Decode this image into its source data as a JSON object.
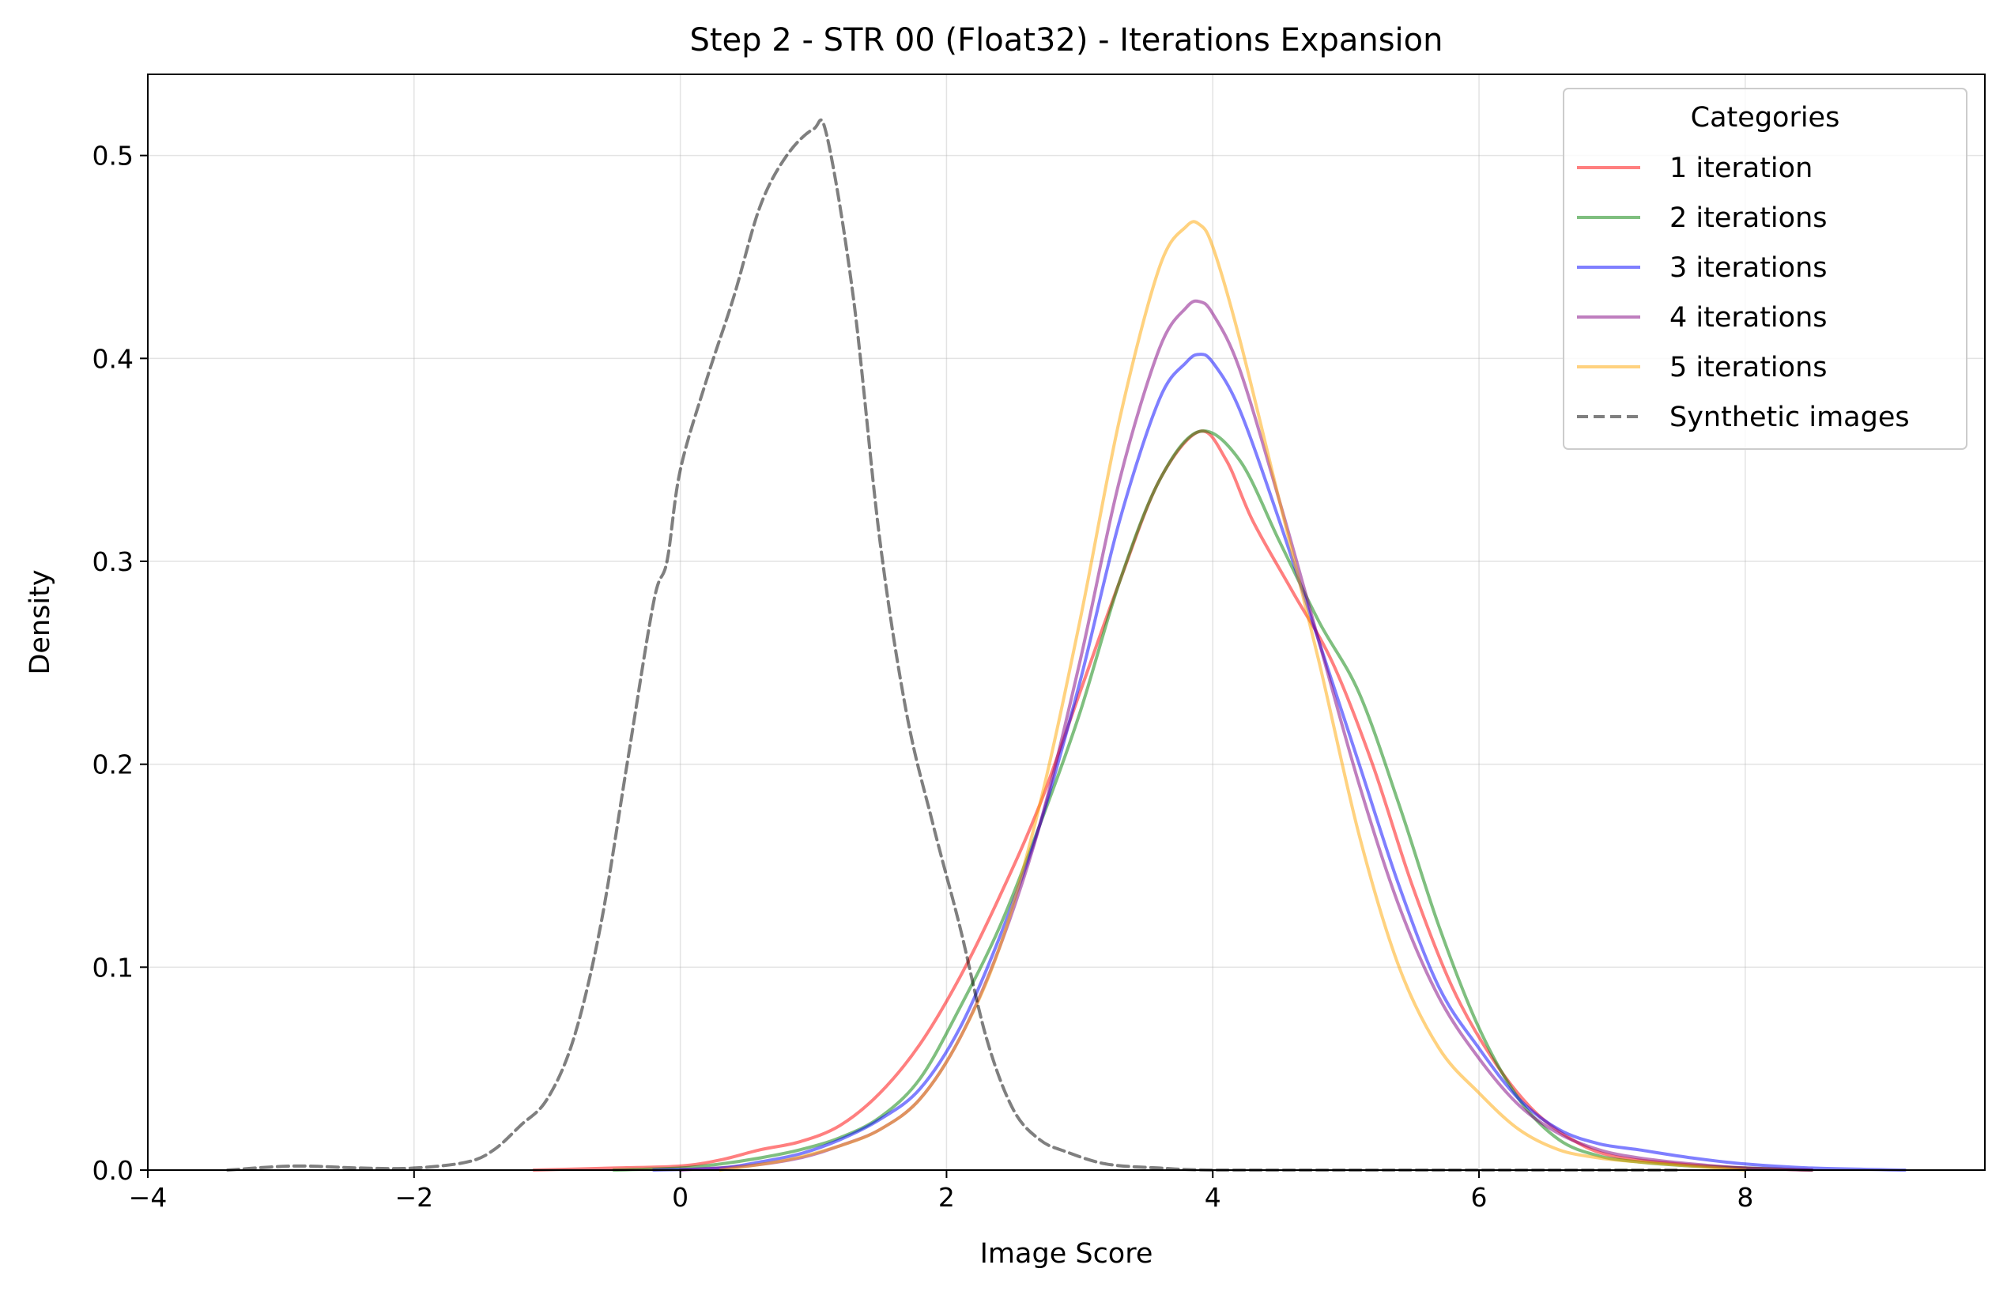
{
  "chart_data": {
    "type": "line",
    "title": "Step 2 - STR 00 (Float32) - Iterations Expansion",
    "xlabel": "Image Score",
    "ylabel": "Density",
    "xlim": [
      -4,
      9.8
    ],
    "ylim": [
      0,
      0.54
    ],
    "xticks": [
      -4,
      -2,
      0,
      2,
      4,
      6,
      8
    ],
    "xtick_labels": [
      "−4",
      "−2",
      "0",
      "2",
      "4",
      "6",
      "8"
    ],
    "yticks": [
      0.0,
      0.1,
      0.2,
      0.3,
      0.4,
      0.5
    ],
    "ytick_labels": [
      "0.0",
      "0.1",
      "0.2",
      "0.3",
      "0.4",
      "0.5"
    ],
    "grid": true,
    "legend": {
      "title": "Categories",
      "placement": "top-right"
    },
    "series": [
      {
        "name": "1 iteration",
        "color": "#ff0000",
        "opacity": 0.5,
        "dash": "solid",
        "x": [
          -1.1,
          -0.5,
          0.0,
          0.3,
          0.6,
          0.9,
          1.2,
          1.5,
          1.8,
          2.1,
          2.4,
          2.7,
          3.0,
          3.3,
          3.6,
          3.9,
          4.1,
          4.3,
          4.6,
          4.9,
          5.2,
          5.5,
          5.8,
          6.1,
          6.4,
          6.7,
          7.0,
          7.5,
          8.0,
          8.5
        ],
        "y": [
          0.0,
          0.001,
          0.002,
          0.005,
          0.01,
          0.014,
          0.022,
          0.038,
          0.062,
          0.095,
          0.135,
          0.18,
          0.235,
          0.29,
          0.34,
          0.364,
          0.35,
          0.32,
          0.285,
          0.25,
          0.2,
          0.14,
          0.09,
          0.055,
          0.03,
          0.015,
          0.007,
          0.003,
          0.001,
          0.0
        ]
      },
      {
        "name": "2 iterations",
        "color": "#008000",
        "opacity": 0.5,
        "dash": "solid",
        "x": [
          -0.5,
          0.0,
          0.3,
          0.6,
          0.9,
          1.2,
          1.5,
          1.8,
          2.1,
          2.4,
          2.7,
          3.0,
          3.3,
          3.6,
          3.9,
          4.2,
          4.5,
          4.8,
          5.1,
          5.4,
          5.7,
          6.0,
          6.3,
          6.6,
          6.9,
          7.2,
          7.6,
          8.0,
          8.5
        ],
        "y": [
          0.0,
          0.001,
          0.003,
          0.006,
          0.01,
          0.016,
          0.026,
          0.045,
          0.08,
          0.12,
          0.17,
          0.225,
          0.29,
          0.34,
          0.364,
          0.35,
          0.31,
          0.27,
          0.235,
          0.18,
          0.12,
          0.07,
          0.035,
          0.015,
          0.007,
          0.004,
          0.002,
          0.001,
          0.0
        ]
      },
      {
        "name": "3 iterations",
        "color": "#0000ff",
        "opacity": 0.5,
        "dash": "solid",
        "x": [
          -0.2,
          0.3,
          0.6,
          0.9,
          1.2,
          1.5,
          1.8,
          2.1,
          2.4,
          2.7,
          3.0,
          3.3,
          3.6,
          3.8,
          3.9,
          4.0,
          4.2,
          4.5,
          4.8,
          5.1,
          5.4,
          5.7,
          6.0,
          6.3,
          6.6,
          6.9,
          7.2,
          7.6,
          8.0,
          8.5,
          9.2
        ],
        "y": [
          0.0,
          0.001,
          0.004,
          0.008,
          0.015,
          0.025,
          0.04,
          0.07,
          0.115,
          0.17,
          0.24,
          0.32,
          0.38,
          0.398,
          0.402,
          0.398,
          0.375,
          0.32,
          0.26,
          0.2,
          0.14,
          0.09,
          0.06,
          0.035,
          0.02,
          0.013,
          0.01,
          0.006,
          0.003,
          0.001,
          0.0
        ]
      },
      {
        "name": "4 iterations",
        "color": "#800080",
        "opacity": 0.5,
        "dash": "solid",
        "x": [
          0.0,
          0.5,
          0.9,
          1.2,
          1.5,
          1.8,
          2.1,
          2.4,
          2.7,
          3.0,
          3.3,
          3.6,
          3.8,
          3.9,
          4.0,
          4.2,
          4.5,
          4.8,
          5.1,
          5.4,
          5.7,
          6.0,
          6.3,
          6.6,
          6.9,
          7.2,
          7.6,
          8.0,
          8.5
        ],
        "y": [
          0.0,
          0.002,
          0.006,
          0.012,
          0.02,
          0.035,
          0.065,
          0.11,
          0.17,
          0.25,
          0.34,
          0.405,
          0.425,
          0.428,
          0.422,
          0.395,
          0.33,
          0.26,
          0.19,
          0.13,
          0.085,
          0.055,
          0.032,
          0.018,
          0.01,
          0.006,
          0.003,
          0.001,
          0.0
        ]
      },
      {
        "name": "5 iterations",
        "color": "#ffa500",
        "opacity": 0.5,
        "dash": "solid",
        "x": [
          0.3,
          0.8,
          1.2,
          1.5,
          1.8,
          2.1,
          2.4,
          2.7,
          3.0,
          3.3,
          3.6,
          3.8,
          3.9,
          4.0,
          4.2,
          4.5,
          4.8,
          5.1,
          5.4,
          5.7,
          6.0,
          6.3,
          6.6,
          6.9,
          7.2,
          7.6,
          8.0
        ],
        "y": [
          0.0,
          0.005,
          0.012,
          0.02,
          0.035,
          0.065,
          0.11,
          0.18,
          0.27,
          0.37,
          0.445,
          0.465,
          0.466,
          0.455,
          0.41,
          0.33,
          0.25,
          0.165,
          0.1,
          0.06,
          0.038,
          0.02,
          0.01,
          0.006,
          0.004,
          0.002,
          0.0
        ]
      },
      {
        "name": "Synthetic images",
        "color": "#000000",
        "opacity": 0.5,
        "dash": "dashed",
        "x": [
          -3.4,
          -2.9,
          -2.4,
          -2.0,
          -1.6,
          -1.4,
          -1.2,
          -1.0,
          -0.8,
          -0.6,
          -0.4,
          -0.2,
          -0.1,
          0.0,
          0.2,
          0.4,
          0.6,
          0.8,
          1.0,
          1.1,
          1.3,
          1.5,
          1.7,
          1.9,
          2.1,
          2.3,
          2.5,
          2.7,
          2.9,
          3.2,
          3.6,
          4.0,
          5.0,
          6.0,
          7.0,
          7.5
        ],
        "y": [
          0.0,
          0.002,
          0.001,
          0.001,
          0.004,
          0.01,
          0.022,
          0.035,
          0.065,
          0.12,
          0.2,
          0.28,
          0.3,
          0.345,
          0.39,
          0.43,
          0.475,
          0.5,
          0.513,
          0.51,
          0.43,
          0.31,
          0.225,
          0.17,
          0.12,
          0.065,
          0.03,
          0.015,
          0.009,
          0.003,
          0.001,
          0.0,
          0.0,
          0.0,
          0.0,
          0.0
        ]
      }
    ]
  }
}
